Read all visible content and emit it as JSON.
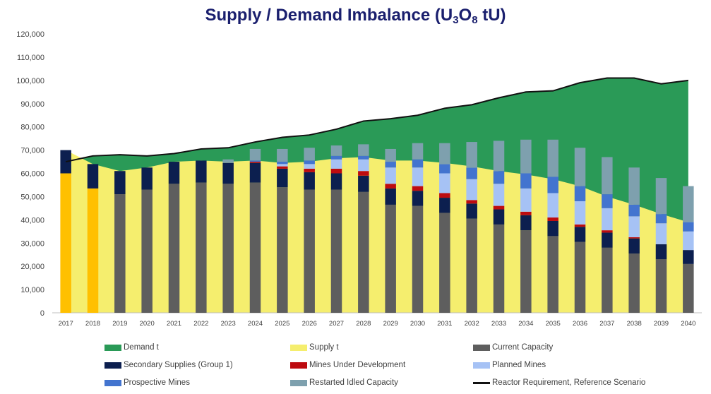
{
  "title": {
    "prefix": "Supply / Demand Imbalance (U",
    "sub1": "3",
    "mid": "O",
    "sub2": "8",
    "suffix": " tU)"
  },
  "chart_data": {
    "type": "bar",
    "title": "Supply / Demand Imbalance (U3O8 tU)",
    "xlabel": "",
    "ylabel": "",
    "ylim": [
      0,
      120000
    ],
    "y_ticks": [
      0,
      10000,
      20000,
      30000,
      40000,
      50000,
      60000,
      70000,
      80000,
      90000,
      100000,
      110000,
      120000
    ],
    "y_tick_labels": [
      "0",
      "10,000",
      "20,000",
      "30,000",
      "40,000",
      "50,000",
      "60,000",
      "70,000",
      "80,000",
      "90,000",
      "100,000",
      "110,000",
      "120,000"
    ],
    "grid": false,
    "legend_position": "bottom",
    "categories": [
      "2017",
      "2018",
      "2019",
      "2020",
      "2021",
      "2022",
      "2023",
      "2024",
      "2025",
      "2026",
      "2027",
      "2028",
      "2029",
      "2030",
      "2031",
      "2032",
      "2033",
      "2034",
      "2035",
      "2036",
      "2037",
      "2038",
      "2039",
      "2040"
    ],
    "areas": [
      {
        "name": "Demand t",
        "color": "#2a9a57",
        "values": [
          65000,
          67500,
          68000,
          67500,
          68500,
          70500,
          71000,
          73500,
          75500,
          76500,
          79000,
          82500,
          83500,
          85000,
          88000,
          89500,
          92500,
          95000,
          95500,
          99000,
          101000,
          101000,
          98500,
          100000
        ]
      },
      {
        "name": "Supply t",
        "color": "#f5ee6e",
        "values": [
          70000,
          64000,
          61000,
          62500,
          65000,
          65500,
          65000,
          65500,
          64500,
          65000,
          66500,
          67000,
          65500,
          65500,
          64500,
          63000,
          61000,
          59500,
          57500,
          54500,
          50000,
          46500,
          42500,
          39000
        ]
      }
    ],
    "series": [
      {
        "name": "Current Capacity",
        "color": "#5e5e5e",
        "values": [
          60000,
          53500,
          51000,
          53000,
          55500,
          56000,
          55500,
          56000,
          54000,
          53000,
          53000,
          52000,
          46500,
          46000,
          43000,
          40500,
          38000,
          35500,
          33000,
          30500,
          28000,
          25500,
          23000,
          21000
        ]
      },
      {
        "name": "Secondary Supplies (Group 1)",
        "color": "#0c1f4f",
        "values": [
          10000,
          10500,
          10000,
          9500,
          9500,
          9500,
          9000,
          8500,
          8000,
          7500,
          7000,
          7000,
          7000,
          6500,
          6500,
          6500,
          6500,
          6500,
          6500,
          6500,
          6500,
          6500,
          6500,
          6000
        ]
      },
      {
        "name": "Mines Under Development",
        "color": "#bd0b10",
        "values": [
          0,
          0,
          0,
          0,
          0,
          0,
          0,
          500,
          1000,
          1500,
          2000,
          2000,
          2000,
          2000,
          2000,
          1500,
          1500,
          1500,
          1500,
          1000,
          1000,
          500,
          0,
          0
        ]
      },
      {
        "name": "Planned Mines",
        "color": "#a6c2f5",
        "values": [
          0,
          0,
          0,
          0,
          0,
          0,
          0,
          0,
          1000,
          2000,
          4000,
          5000,
          7000,
          8000,
          8500,
          9000,
          9500,
          10000,
          10500,
          10000,
          9500,
          9000,
          9000,
          8000
        ]
      },
      {
        "name": "Prospective Mines",
        "color": "#4374cf",
        "values": [
          0,
          0,
          0,
          0,
          0,
          0,
          0,
          500,
          1000,
          1500,
          1500,
          1500,
          2500,
          3500,
          4000,
          5000,
          5500,
          6500,
          7000,
          6500,
          6000,
          5000,
          4000,
          4000
        ]
      },
      {
        "name": "Restarted Idled Capacity",
        "color": "#7ea0ae",
        "values": [
          0,
          0,
          0,
          0,
          0,
          0,
          1500,
          5000,
          5500,
          5500,
          4500,
          5000,
          5500,
          7000,
          9000,
          11000,
          13000,
          14500,
          16000,
          16500,
          16000,
          16000,
          15500,
          15500
        ]
      }
    ],
    "special_bar_colors": {
      "2017": "#ffc000",
      "2018": "#ffc000"
    },
    "line": {
      "name": "Reactor Requirement, Reference Scenario",
      "color": "#111111",
      "values": [
        65000,
        67500,
        68000,
        67500,
        68500,
        70500,
        71000,
        73500,
        75500,
        76500,
        79000,
        82500,
        83500,
        85000,
        88000,
        89500,
        92500,
        95000,
        95500,
        99000,
        101000,
        101000,
        98500,
        100000
      ]
    }
  },
  "legend": [
    {
      "label": "Demand t",
      "color": "#2a9a57",
      "kind": "box"
    },
    {
      "label": "Supply t",
      "color": "#f5ee6e",
      "kind": "box"
    },
    {
      "label": "Current Capacity",
      "color": "#5e5e5e",
      "kind": "box"
    },
    {
      "label": "Secondary Supplies (Group 1)",
      "color": "#0c1f4f",
      "kind": "box"
    },
    {
      "label": "Mines Under Development",
      "color": "#bd0b10",
      "kind": "box"
    },
    {
      "label": "Planned Mines",
      "color": "#a6c2f5",
      "kind": "box"
    },
    {
      "label": "Prospective Mines",
      "color": "#4374cf",
      "kind": "box"
    },
    {
      "label": "Restarted Idled Capacity",
      "color": "#7ea0ae",
      "kind": "box"
    },
    {
      "label": "Reactor Requirement, Reference Scenario",
      "color": "#111111",
      "kind": "line"
    }
  ]
}
